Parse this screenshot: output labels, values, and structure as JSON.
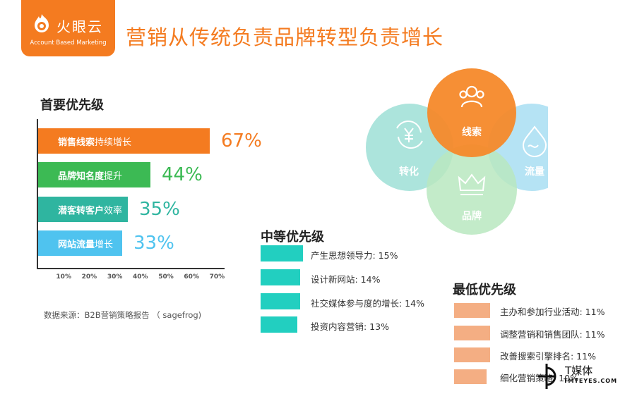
{
  "header": {
    "logo_name": "火眼云",
    "logo_sub": "Account Based Marketing",
    "title": "营销从传统负责品牌转型负责增长"
  },
  "colors": {
    "brand_orange": "#f47b20",
    "green": "#3cba54",
    "teal": "#2fb5a0",
    "light_blue": "#4fc3ef",
    "medium_teal": "#22cfc0",
    "low_salmon": "#f4ae83"
  },
  "chart_data": [
    {
      "type": "bar",
      "orientation": "horizontal",
      "title": "首要优先级",
      "categories": [
        {
          "bold": "销售线索",
          "rest": "持续增长"
        },
        {
          "bold": "品牌知名度",
          "rest": "提升"
        },
        {
          "bold": "潜客转客户",
          "rest": "效率"
        },
        {
          "bold": "网站流量",
          "rest": "增长"
        }
      ],
      "values": [
        67,
        44,
        35,
        33
      ],
      "value_labels": [
        "67%",
        "44%",
        "35%",
        "33%"
      ],
      "bar_colors": [
        "#f47b20",
        "#3cba54",
        "#2fb5a0",
        "#4fc3ef"
      ],
      "xlim": [
        0,
        73
      ],
      "xticks": [
        "10%",
        "20%",
        "30%",
        "40%",
        "50%",
        "60%",
        "70%"
      ],
      "xtick_values": [
        10,
        20,
        30,
        40,
        50,
        60,
        70
      ],
      "grid": false
    },
    {
      "type": "bar",
      "orientation": "horizontal",
      "title": "中等优先级",
      "labels": [
        "产生思想领导力: 15%",
        "设计新网站: 14%",
        "社交媒体参与度的增长: 14%",
        "投资内容营销: 13%"
      ],
      "values": [
        15,
        14,
        14,
        13
      ]
    },
    {
      "type": "bar",
      "orientation": "horizontal",
      "title": "最低优先级",
      "labels": [
        "主办和参加行业活动: 11%",
        "调整营销和销售团队: 11%",
        "改善搜索引擎排名: 11%",
        "细化营销策略: 10%"
      ],
      "values": [
        11,
        11,
        11,
        10
      ]
    }
  ],
  "venn": {
    "circles": [
      {
        "label": "线索",
        "icon": "people-icon",
        "color": "#f6892a"
      },
      {
        "label": "转化",
        "icon": "yen-cycle-icon",
        "color": "#9edfd6"
      },
      {
        "label": "流量",
        "icon": "water-drop-icon",
        "color": "#a8def2"
      },
      {
        "label": "品牌",
        "icon": "crown-icon",
        "color": "#b9e8c0"
      }
    ]
  },
  "source": "数据来源：B2B营销策略报告 （ sagefrog)",
  "watermark": {
    "name": "T媒体",
    "url": "TMTEYES.COM"
  }
}
